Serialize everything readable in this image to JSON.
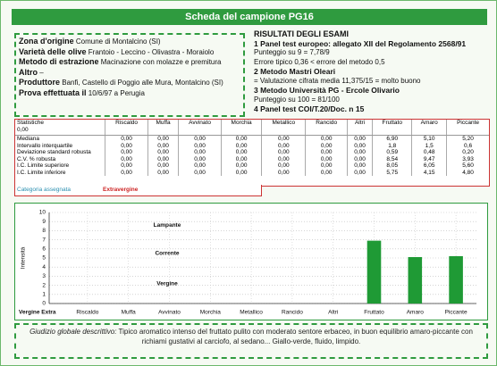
{
  "header": {
    "title": "Scheda del campione PG16"
  },
  "info": [
    {
      "label": "Zona d'origine",
      "value": "Comune di Montalcino (SI)"
    },
    {
      "label": "Varietà delle olive",
      "value": "Frantoio - Leccino - Olivastra - Moraiolo"
    },
    {
      "label": "Metodo di estrazione",
      "value": "Macinazione con molazze e premitura"
    },
    {
      "label": "Altro",
      "value": "–"
    },
    {
      "label": "Produttore",
      "value": "Banfi, Castello di Poggio alle Mura, Montalcino (SI)"
    },
    {
      "label": "Prova effettuata il",
      "value": "10/6/97 a Perugia"
    }
  ],
  "results": {
    "title": "RISULTATI DEGLI ESAMI",
    "items": [
      {
        "text": "1 Panel test europeo: allegato XII del Regolamento 2568/91",
        "sub": [
          "Punteggio su 9 = 7,78/9",
          "Errore tipico 0,36 < errore del metodo 0,5"
        ]
      },
      {
        "text": "2 Metodo Mastri Oleari",
        "sub": [
          "= Valutazione cifrata media 11,375/15 = molto buono"
        ]
      },
      {
        "text": "3 Metodo Università PG - Ercole Olivario",
        "sub": [
          "Punteggio su 100 = 81/100"
        ]
      },
      {
        "text": "4 Panel test COI/T.20/Doc. n 15",
        "sub": []
      }
    ]
  },
  "table": {
    "corner": [
      "Statistiche",
      "0,00"
    ],
    "columns": [
      "Riscaldo",
      "Muffa",
      "Avvinato",
      "Morchia",
      "Metallico",
      "Rancido",
      "Altri",
      "Fruttato",
      "Amaro",
      "Piccante"
    ],
    "rows": [
      {
        "label": "Mediana",
        "cells": [
          "0,00",
          "0,00",
          "0,00",
          "0,00",
          "0,00",
          "0,00",
          "0,00",
          "6,90",
          "5,10",
          "5,20"
        ]
      },
      {
        "label": "Intervallo interquartile",
        "cells": [
          "0,00",
          "0,00",
          "0,00",
          "0,00",
          "0,00",
          "0,00",
          "0,00",
          "1,8",
          "1,5",
          "0,6"
        ]
      },
      {
        "label": "Deviazione standard robusta",
        "cells": [
          "0,00",
          "0,00",
          "0,00",
          "0,00",
          "0,00",
          "0,00",
          "0,00",
          "0,59",
          "0,48",
          "0,20"
        ]
      },
      {
        "label": "C.V. % robusta",
        "cells": [
          "0,00",
          "0,00",
          "0,00",
          "0,00",
          "0,00",
          "0,00",
          "0,00",
          "8,54",
          "9,47",
          "3,93"
        ]
      },
      {
        "label": "I.C. Limite superiore",
        "cells": [
          "0,00",
          "0,00",
          "0,00",
          "0,00",
          "0,00",
          "0,00",
          "0,00",
          "8,05",
          "6,05",
          "5,60"
        ]
      },
      {
        "label": "I.C. Limite inferiore",
        "cells": [
          "0,00",
          "0,00",
          "0,00",
          "0,00",
          "0,00",
          "0,00",
          "0,00",
          "5,75",
          "4,15",
          "4,80"
        ]
      }
    ],
    "category": {
      "label": "Categoria assegnata",
      "value": "Extravergine"
    }
  },
  "chart_data": {
    "type": "bar",
    "y_label": "Intensità",
    "x_origin_label": "Vergine Extra",
    "annotations": [
      "Lampante",
      "Corrente",
      "Vergine"
    ],
    "categories": [
      "Riscaldo",
      "Muffa",
      "Avvinato",
      "Morchia",
      "Metallico",
      "Rancido",
      "Altri",
      "Fruttato",
      "Amaro",
      "Piccante"
    ],
    "values": [
      0,
      0,
      0,
      0,
      0,
      0,
      0,
      6.9,
      5.1,
      5.2
    ],
    "color": "#1f9a35",
    "ylim": [
      0,
      10
    ],
    "yticks": [
      0,
      1,
      2,
      3,
      4,
      5,
      6,
      7,
      8,
      9,
      10
    ],
    "grid": true
  },
  "footer": {
    "label": "Giudizio globale descrittivo:",
    "text": "Tipico aromatico intenso del fruttato pulito con moderato sentore erbaceo, in buon equilibrio amaro-piccante con richiami gustativi al carciofo, al sedano... Giallo-verde, fluido, limpido."
  }
}
